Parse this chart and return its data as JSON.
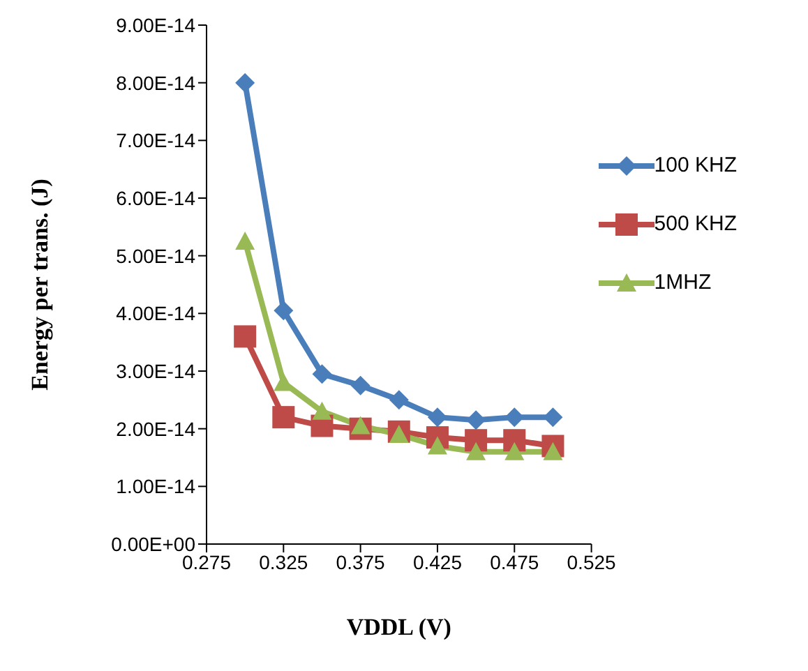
{
  "chart_data": {
    "type": "line",
    "xlabel": "VDDL (V)",
    "ylabel": "Energy per trans. (J)",
    "x": [
      0.3,
      0.325,
      0.35,
      0.375,
      0.4,
      0.425,
      0.45,
      0.475,
      0.5
    ],
    "series": [
      {
        "name": "100 KHZ",
        "color": "#4a7ebb",
        "marker": "diamond",
        "values": [
          8e-14,
          4.05e-14,
          2.95e-14,
          2.75e-14,
          2.5e-14,
          2.2e-14,
          2.15e-14,
          2.2e-14,
          2.2e-14
        ]
      },
      {
        "name": "500 KHZ",
        "color": "#be4b48",
        "marker": "square",
        "values": [
          3.6e-14,
          2.2e-14,
          2.05e-14,
          2e-14,
          1.95e-14,
          1.85e-14,
          1.8e-14,
          1.8e-14,
          1.7e-14
        ]
      },
      {
        "name": "1MHZ",
        "color": "#98b954",
        "marker": "triangle",
        "values": [
          5.25e-14,
          2.8e-14,
          2.3e-14,
          2.05e-14,
          1.9e-14,
          1.7e-14,
          1.6e-14,
          1.6e-14,
          1.6e-14
        ]
      }
    ],
    "xlim": [
      0.275,
      0.525
    ],
    "xticks": [
      0.275,
      0.325,
      0.375,
      0.425,
      0.475,
      0.525
    ],
    "ylim": [
      0,
      9e-14
    ],
    "yticks": [
      {
        "value": 0,
        "label": "0.00E+00"
      },
      {
        "value": 1e-14,
        "label": "1.00E-14"
      },
      {
        "value": 2e-14,
        "label": "2.00E-14"
      },
      {
        "value": 3e-14,
        "label": "3.00E-14"
      },
      {
        "value": 4e-14,
        "label": "4.00E-14"
      },
      {
        "value": 5e-14,
        "label": "5.00E-14"
      },
      {
        "value": 6e-14,
        "label": "6.00E-14"
      },
      {
        "value": 7e-14,
        "label": "7.00E-14"
      },
      {
        "value": 8e-14,
        "label": "8.00E-14"
      },
      {
        "value": 9e-14,
        "label": "9.00E-14"
      }
    ],
    "grid": false,
    "legend": "top right"
  }
}
